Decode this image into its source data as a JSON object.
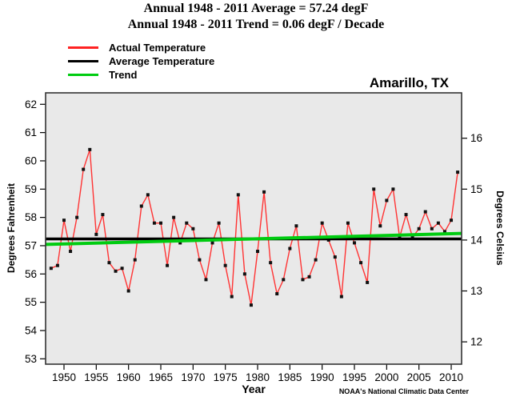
{
  "titles": {
    "line1": "Annual 1948 - 2011 Average = 57.24 degF",
    "line2": "Annual 1948 - 2011 Trend = 0.06 degF / Decade"
  },
  "station": "Amarillo, TX",
  "credit": "NOAA's National Climatic Data Center",
  "legend": [
    {
      "label": "Actual Temperature",
      "color": "#ff2222"
    },
    {
      "label": "Average Temperature",
      "color": "#000000"
    },
    {
      "label": "Trend",
      "color": "#00cc11"
    }
  ],
  "colors": {
    "actual": "#ff3333",
    "average": "#000000",
    "trend": "#00cc11",
    "marker": "#111111",
    "plot_bg": "#e9e9e9",
    "frame": "#333333"
  },
  "chart_data": {
    "type": "line",
    "title": "Annual temperature, Amarillo TX, 1948-2011",
    "xlabel": "Year",
    "ylabel_left": "Degrees Fahrenheit",
    "ylabel_right": "Degrees Celsius",
    "legend_position": "top-left",
    "grid": false,
    "average_f": 57.24,
    "trend_degf_per_decade": 0.06,
    "trend_center_year": 1979.5,
    "ylim_f": [
      53,
      62
    ],
    "yticks_f": [
      53,
      54,
      55,
      56,
      57,
      58,
      59,
      60,
      61,
      62
    ],
    "yticks_c": [
      12,
      13,
      14,
      15,
      16
    ],
    "xticks": [
      1950,
      1955,
      1960,
      1965,
      1970,
      1975,
      1980,
      1985,
      1990,
      1995,
      2000,
      2005,
      2010
    ],
    "x": [
      1948,
      1949,
      1950,
      1951,
      1952,
      1953,
      1954,
      1955,
      1956,
      1957,
      1958,
      1959,
      1960,
      1961,
      1962,
      1963,
      1964,
      1965,
      1966,
      1967,
      1968,
      1969,
      1970,
      1971,
      1972,
      1973,
      1974,
      1975,
      1976,
      1977,
      1978,
      1979,
      1980,
      1981,
      1982,
      1983,
      1984,
      1985,
      1986,
      1987,
      1988,
      1989,
      1990,
      1991,
      1992,
      1993,
      1994,
      1995,
      1996,
      1997,
      1998,
      1999,
      2000,
      2001,
      2002,
      2003,
      2004,
      2005,
      2006,
      2007,
      2008,
      2009,
      2010,
      2011
    ],
    "values": [
      56.2,
      56.3,
      57.9,
      56.8,
      58.0,
      59.7,
      60.4,
      57.4,
      58.1,
      56.4,
      56.1,
      56.2,
      55.4,
      56.5,
      58.4,
      58.8,
      57.8,
      57.8,
      56.3,
      58.0,
      57.1,
      57.8,
      57.6,
      56.5,
      55.8,
      57.1,
      57.8,
      56.3,
      55.2,
      58.8,
      56.0,
      54.9,
      56.8,
      58.9,
      56.4,
      55.3,
      55.8,
      56.9,
      57.7,
      55.8,
      55.9,
      56.5,
      57.8,
      57.2,
      56.6,
      55.2,
      57.8,
      57.1,
      56.4,
      55.7,
      59.0,
      57.7,
      58.6,
      59.0,
      57.3,
      58.1,
      57.3,
      57.6,
      58.2,
      57.6,
      57.8,
      57.5,
      57.9,
      59.6
    ]
  }
}
